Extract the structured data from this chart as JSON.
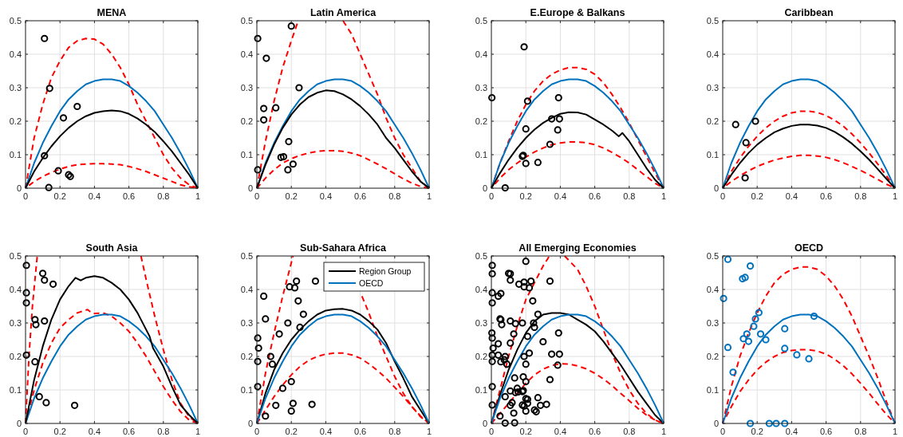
{
  "chart_data": [
    {
      "type": "line",
      "title": "MENA",
      "xlim": [
        0,
        1
      ],
      "xticks": [
        0,
        0.2,
        0.4,
        0.6,
        0.8,
        1
      ],
      "ylim": [
        0,
        0.5
      ],
      "yticks": [
        0,
        0.1,
        0.2,
        0.3,
        0.4,
        0.5
      ],
      "grid": true,
      "legend": false,
      "series": [
        {
          "type": "scatter",
          "marker": "circle",
          "color": "#000000",
          "x": [
            0.11,
            0.14,
            0.3,
            0.22,
            0.11,
            0.19,
            0.25,
            0.26,
            0.135
          ],
          "values": [
            0.447,
            0.298,
            0.244,
            0.21,
            0.097,
            0.052,
            0.04,
            0.035,
            0.002
          ]
        },
        {
          "type": "line",
          "line_style": "dashed",
          "color": "#ff0000",
          "x": [
            0,
            0.05,
            0.1,
            0.15,
            0.2,
            0.25,
            0.3,
            0.35,
            0.4,
            0.45,
            0.5,
            0.55,
            0.6,
            0.65,
            0.7,
            0.75,
            0.8,
            0.85,
            0.9,
            0.95,
            1
          ],
          "values": [
            0,
            0.15,
            0.25,
            0.33,
            0.38,
            0.42,
            0.44,
            0.447,
            0.445,
            0.43,
            0.4,
            0.36,
            0.31,
            0.25,
            0.2,
            0.15,
            0.1,
            0.06,
            0.03,
            0.01,
            0
          ]
        },
        {
          "type": "line",
          "line_style": "dashed",
          "color": "#ff0000",
          "x": [
            0.02,
            0.05,
            0.1,
            0.15,
            0.2,
            0.25,
            0.3,
            0.35,
            0.4,
            0.45,
            0.5,
            0.55,
            0.6,
            0.65,
            0.7,
            0.75,
            0.8,
            0.85,
            0.9,
            0.95,
            0.98
          ],
          "values": [
            0.008,
            0.02,
            0.035,
            0.047,
            0.057,
            0.065,
            0.07,
            0.072,
            0.073,
            0.073,
            0.072,
            0.07,
            0.065,
            0.058,
            0.05,
            0.04,
            0.03,
            0.02,
            0.01,
            0.004,
            0.002
          ]
        },
        {
          "type": "line",
          "line_style": "solid",
          "color": "#0072bd",
          "x": [
            0,
            0.05,
            0.1,
            0.15,
            0.2,
            0.25,
            0.3,
            0.35,
            0.4,
            0.45,
            0.5,
            0.55,
            0.6,
            0.65,
            0.7,
            0.75,
            0.8,
            0.85,
            0.9,
            0.95,
            1
          ],
          "values": [
            0,
            0.075,
            0.135,
            0.185,
            0.23,
            0.265,
            0.29,
            0.31,
            0.32,
            0.325,
            0.325,
            0.32,
            0.305,
            0.285,
            0.26,
            0.23,
            0.19,
            0.15,
            0.105,
            0.055,
            0
          ]
        },
        {
          "type": "line",
          "line_style": "solid",
          "color": "#000000",
          "x": [
            0,
            0.05,
            0.1,
            0.15,
            0.2,
            0.25,
            0.3,
            0.35,
            0.4,
            0.45,
            0.5,
            0.55,
            0.6,
            0.65,
            0.7,
            0.75,
            0.8,
            0.85,
            0.9,
            0.95,
            1
          ],
          "values": [
            0,
            0.05,
            0.09,
            0.125,
            0.155,
            0.18,
            0.2,
            0.215,
            0.225,
            0.23,
            0.232,
            0.23,
            0.222,
            0.208,
            0.19,
            0.168,
            0.14,
            0.11,
            0.075,
            0.04,
            0
          ]
        }
      ]
    },
    {
      "type": "line",
      "title": "Latin America",
      "xlim": [
        0,
        1
      ],
      "xticks": [
        0,
        0.2,
        0.4,
        0.6,
        0.8,
        1
      ],
      "ylim": [
        0,
        0.5
      ],
      "yticks": [
        0,
        0.1,
        0.2,
        0.3,
        0.4,
        0.5
      ],
      "grid": true,
      "legend": false,
      "series": [
        {
          "type": "scatter",
          "marker": "circle",
          "color": "#000000",
          "x": [
            0.005,
            0.055,
            0.2,
            0.245,
            0.11,
            0.04,
            0.04,
            0.185,
            0.14,
            0.155,
            0.005,
            0.21,
            0.18
          ],
          "values": [
            0.447,
            0.388,
            0.484,
            0.3,
            0.24,
            0.238,
            0.204,
            0.139,
            0.092,
            0.094,
            0.055,
            0.072,
            0.055
          ]
        },
        {
          "type": "line",
          "line_style": "dashed",
          "color": "#ff0000",
          "x": [
            0,
            0.05,
            0.1,
            0.15,
            0.2,
            0.24,
            0.35,
            0.5,
            0.55,
            0.6,
            0.65,
            0.7,
            0.75,
            0.8,
            0.85,
            0.9,
            0.95,
            1
          ],
          "values": [
            0,
            0.14,
            0.26,
            0.36,
            0.44,
            0.5,
            null,
            0.5,
            0.46,
            0.4,
            0.34,
            0.28,
            0.21,
            0.15,
            0.1,
            0.06,
            0.02,
            0
          ]
        },
        {
          "type": "line",
          "line_style": "dashed",
          "color": "#ff0000",
          "x": [
            0,
            0.05,
            0.1,
            0.15,
            0.2,
            0.25,
            0.3,
            0.35,
            0.4,
            0.45,
            0.5,
            0.55,
            0.6,
            0.65,
            0.7,
            0.75,
            0.8,
            0.85,
            0.9,
            0.95,
            1
          ],
          "values": [
            0,
            0.03,
            0.055,
            0.075,
            0.088,
            0.098,
            0.105,
            0.11,
            0.112,
            0.112,
            0.11,
            0.105,
            0.097,
            0.085,
            0.072,
            0.058,
            0.043,
            0.028,
            0.015,
            0.005,
            0
          ]
        },
        {
          "type": "line",
          "line_style": "solid",
          "color": "#0072bd",
          "x": [
            0,
            0.05,
            0.1,
            0.15,
            0.2,
            0.25,
            0.3,
            0.35,
            0.4,
            0.45,
            0.5,
            0.55,
            0.6,
            0.65,
            0.7,
            0.75,
            0.8,
            0.85,
            0.9,
            0.95,
            1
          ],
          "values": [
            0,
            0.075,
            0.135,
            0.185,
            0.23,
            0.265,
            0.29,
            0.31,
            0.32,
            0.325,
            0.325,
            0.32,
            0.305,
            0.285,
            0.26,
            0.23,
            0.19,
            0.15,
            0.105,
            0.055,
            0
          ]
        },
        {
          "type": "line",
          "line_style": "solid",
          "color": "#000000",
          "x": [
            0,
            0.05,
            0.1,
            0.15,
            0.2,
            0.25,
            0.3,
            0.35,
            0.4,
            0.45,
            0.5,
            0.55,
            0.6,
            0.65,
            0.7,
            0.75,
            0.8,
            0.85,
            0.9,
            0.95,
            1
          ],
          "values": [
            0,
            0.07,
            0.13,
            0.18,
            0.22,
            0.25,
            0.272,
            0.285,
            0.292,
            0.29,
            0.28,
            0.265,
            0.245,
            0.22,
            0.19,
            0.15,
            0.12,
            0.085,
            0.05,
            0.02,
            0
          ]
        }
      ]
    },
    {
      "type": "line",
      "title": "E.Europe & Balkans",
      "xlim": [
        0,
        1
      ],
      "xticks": [
        0,
        0.2,
        0.4,
        0.6,
        0.8,
        1
      ],
      "ylim": [
        0,
        0.5
      ],
      "yticks": [
        0,
        0.1,
        0.2,
        0.3,
        0.4,
        0.5
      ],
      "grid": true,
      "legend": false,
      "series": [
        {
          "type": "scatter",
          "marker": "circle",
          "color": "#000000",
          "x": [
            0.19,
            0.003,
            0.21,
            0.39,
            0.35,
            0.395,
            0.2,
            0.385,
            0.34,
            0.18,
            0.185,
            0.2,
            0.27,
            0.08
          ],
          "values": [
            0.422,
            0.27,
            0.26,
            0.27,
            0.207,
            0.207,
            0.177,
            0.174,
            0.131,
            0.095,
            0.098,
            0.074,
            0.077,
            0.001
          ]
        },
        {
          "type": "line",
          "line_style": "dashed",
          "color": "#ff0000",
          "x": [
            0,
            0.05,
            0.1,
            0.15,
            0.2,
            0.25,
            0.3,
            0.35,
            0.4,
            0.45,
            0.5,
            0.55,
            0.6,
            0.65,
            0.7,
            0.75,
            0.8,
            0.85,
            0.9,
            0.95,
            1
          ],
          "values": [
            0,
            0.075,
            0.14,
            0.2,
            0.25,
            0.29,
            0.32,
            0.34,
            0.353,
            0.36,
            0.36,
            0.355,
            0.34,
            0.315,
            0.28,
            0.24,
            0.195,
            0.145,
            0.095,
            0.045,
            0
          ]
        },
        {
          "type": "line",
          "line_style": "dashed",
          "color": "#ff0000",
          "x": [
            0.02,
            0.05,
            0.1,
            0.15,
            0.2,
            0.25,
            0.3,
            0.35,
            0.4,
            0.45,
            0.5,
            0.55,
            0.6,
            0.65,
            0.7,
            0.75,
            0.8,
            0.85,
            0.9,
            0.95,
            0.98
          ],
          "values": [
            0.012,
            0.03,
            0.055,
            0.075,
            0.093,
            0.108,
            0.12,
            0.13,
            0.135,
            0.138,
            0.138,
            0.136,
            0.13,
            0.12,
            0.107,
            0.092,
            0.075,
            0.055,
            0.035,
            0.015,
            0.006
          ]
        },
        {
          "type": "line",
          "line_style": "solid",
          "color": "#0072bd",
          "x": [
            0,
            0.05,
            0.1,
            0.15,
            0.2,
            0.25,
            0.3,
            0.35,
            0.4,
            0.45,
            0.5,
            0.55,
            0.6,
            0.65,
            0.7,
            0.75,
            0.8,
            0.85,
            0.9,
            0.95,
            1
          ],
          "values": [
            0,
            0.075,
            0.135,
            0.185,
            0.23,
            0.265,
            0.29,
            0.31,
            0.32,
            0.325,
            0.325,
            0.32,
            0.305,
            0.285,
            0.26,
            0.23,
            0.19,
            0.15,
            0.105,
            0.055,
            0
          ]
        },
        {
          "type": "line",
          "line_style": "solid",
          "color": "#000000",
          "x": [
            0,
            0.05,
            0.1,
            0.15,
            0.2,
            0.25,
            0.3,
            0.35,
            0.4,
            0.45,
            0.5,
            0.55,
            0.6,
            0.65,
            0.7,
            0.74,
            0.76,
            0.8,
            0.85,
            0.9,
            0.95,
            1
          ],
          "values": [
            0,
            0.045,
            0.085,
            0.12,
            0.15,
            0.175,
            0.195,
            0.21,
            0.222,
            0.227,
            0.226,
            0.22,
            0.205,
            0.19,
            0.172,
            0.155,
            0.165,
            0.14,
            0.1,
            0.06,
            0.025,
            0
          ]
        }
      ]
    },
    {
      "type": "line",
      "title": "Caribbean",
      "xlim": [
        0,
        1
      ],
      "xticks": [
        0,
        0.2,
        0.4,
        0.6,
        0.8,
        1
      ],
      "ylim": [
        0,
        0.5
      ],
      "yticks": [
        0,
        0.1,
        0.2,
        0.3,
        0.4,
        0.5
      ],
      "grid": true,
      "legend": false,
      "series": [
        {
          "type": "scatter",
          "marker": "circle",
          "color": "#000000",
          "x": [
            0.075,
            0.19,
            0.135,
            0.13
          ],
          "values": [
            0.19,
            0.2,
            0.136,
            0.031
          ]
        },
        {
          "type": "line",
          "line_style": "dashed",
          "color": "#ff0000",
          "x": [
            0,
            0.05,
            0.1,
            0.15,
            0.2,
            0.25,
            0.3,
            0.35,
            0.4,
            0.45,
            0.5,
            0.55,
            0.6,
            0.65,
            0.7,
            0.75,
            0.8,
            0.85,
            0.9,
            0.95,
            1
          ],
          "values": [
            0,
            0.05,
            0.09,
            0.125,
            0.155,
            0.18,
            0.2,
            0.215,
            0.225,
            0.23,
            0.23,
            0.226,
            0.217,
            0.203,
            0.185,
            0.162,
            0.135,
            0.105,
            0.072,
            0.037,
            0
          ]
        },
        {
          "type": "line",
          "line_style": "dashed",
          "color": "#ff0000",
          "x": [
            0.02,
            0.05,
            0.1,
            0.15,
            0.2,
            0.25,
            0.3,
            0.35,
            0.4,
            0.45,
            0.5,
            0.55,
            0.6,
            0.65,
            0.7,
            0.75,
            0.8,
            0.85,
            0.9,
            0.95,
            0.98
          ],
          "values": [
            0.008,
            0.02,
            0.037,
            0.052,
            0.065,
            0.075,
            0.084,
            0.09,
            0.095,
            0.098,
            0.098,
            0.096,
            0.092,
            0.085,
            0.076,
            0.065,
            0.053,
            0.04,
            0.026,
            0.012,
            0.005
          ]
        },
        {
          "type": "line",
          "line_style": "solid",
          "color": "#0072bd",
          "x": [
            0,
            0.05,
            0.1,
            0.15,
            0.2,
            0.25,
            0.3,
            0.35,
            0.4,
            0.45,
            0.5,
            0.55,
            0.6,
            0.65,
            0.7,
            0.75,
            0.8,
            0.85,
            0.9,
            0.95,
            1
          ],
          "values": [
            0,
            0.075,
            0.135,
            0.185,
            0.23,
            0.265,
            0.29,
            0.31,
            0.32,
            0.325,
            0.325,
            0.32,
            0.305,
            0.285,
            0.26,
            0.23,
            0.19,
            0.15,
            0.105,
            0.055,
            0
          ]
        },
        {
          "type": "line",
          "line_style": "solid",
          "color": "#000000",
          "x": [
            0,
            0.05,
            0.1,
            0.15,
            0.2,
            0.25,
            0.3,
            0.35,
            0.4,
            0.45,
            0.5,
            0.55,
            0.6,
            0.65,
            0.7,
            0.75,
            0.8,
            0.85,
            0.9,
            0.95,
            1
          ],
          "values": [
            0,
            0.04,
            0.075,
            0.105,
            0.13,
            0.15,
            0.167,
            0.178,
            0.186,
            0.19,
            0.19,
            0.187,
            0.18,
            0.168,
            0.152,
            0.133,
            0.11,
            0.085,
            0.057,
            0.028,
            0
          ]
        }
      ]
    },
    {
      "type": "line",
      "title": "South Asia",
      "xlim": [
        0,
        1
      ],
      "xticks": [
        0,
        0.2,
        0.4,
        0.6,
        0.8,
        1
      ],
      "ylim": [
        0,
        0.5
      ],
      "yticks": [
        0,
        0.1,
        0.2,
        0.3,
        0.4,
        0.5
      ],
      "grid": true,
      "legend": false,
      "series": [
        {
          "type": "scatter",
          "marker": "circle",
          "color": "#000000",
          "x": [
            0.005,
            0.005,
            0.005,
            0.005,
            0.1,
            0.11,
            0.16,
            0.055,
            0.06,
            0.11,
            0.055,
            0.08,
            0.12,
            0.285
          ],
          "values": [
            0.472,
            0.39,
            0.36,
            0.204,
            0.448,
            0.428,
            0.416,
            0.31,
            0.295,
            0.306,
            0.184,
            0.08,
            0.062,
            0.054
          ]
        },
        {
          "type": "line",
          "line_style": "dashed",
          "color": "#ff0000",
          "x": [
            0,
            0.02,
            0.04,
            0.068,
            0.3,
            0.67,
            0.7,
            0.75,
            0.8,
            0.85,
            0.9,
            0.95,
            1
          ],
          "values": [
            0,
            0.2,
            0.35,
            0.5,
            null,
            0.5,
            0.43,
            0.32,
            0.22,
            0.13,
            0.06,
            0.02,
            0
          ]
        },
        {
          "type": "line",
          "line_style": "dashed",
          "color": "#ff0000",
          "x": [
            0,
            0.05,
            0.1,
            0.15,
            0.2,
            0.25,
            0.3,
            0.36,
            0.39,
            0.45,
            0.5,
            0.55,
            0.6,
            0.65,
            0.7,
            0.75,
            0.8,
            0.85,
            0.9,
            0.95,
            1
          ],
          "values": [
            0,
            0.1,
            0.18,
            0.24,
            0.285,
            0.31,
            0.33,
            0.34,
            0.328,
            0.33,
            0.32,
            0.3,
            0.275,
            0.24,
            0.2,
            0.155,
            0.11,
            0.07,
            0.035,
            0.01,
            0
          ]
        },
        {
          "type": "line",
          "line_style": "solid",
          "color": "#0072bd",
          "x": [
            0,
            0.05,
            0.1,
            0.15,
            0.2,
            0.25,
            0.3,
            0.35,
            0.4,
            0.45,
            0.5,
            0.55,
            0.6,
            0.65,
            0.7,
            0.75,
            0.8,
            0.85,
            0.9,
            0.95,
            1
          ],
          "values": [
            0,
            0.075,
            0.135,
            0.185,
            0.23,
            0.265,
            0.29,
            0.31,
            0.32,
            0.325,
            0.325,
            0.32,
            0.305,
            0.285,
            0.26,
            0.23,
            0.19,
            0.15,
            0.105,
            0.055,
            0
          ]
        },
        {
          "type": "line",
          "line_style": "solid",
          "color": "#000000",
          "x": [
            0,
            0.05,
            0.1,
            0.15,
            0.2,
            0.25,
            0.29,
            0.32,
            0.35,
            0.4,
            0.45,
            0.5,
            0.55,
            0.6,
            0.65,
            0.7,
            0.72,
            0.74,
            0.8,
            0.85,
            0.9,
            0.95,
            1
          ],
          "values": [
            0,
            0.13,
            0.23,
            0.31,
            0.37,
            0.41,
            0.435,
            0.427,
            0.435,
            0.44,
            0.435,
            0.42,
            0.4,
            0.37,
            0.33,
            0.28,
            0.26,
            0.225,
            0.17,
            0.11,
            0.055,
            0.025,
            0
          ]
        }
      ]
    },
    {
      "type": "line",
      "title": "Sub-Sahara Africa",
      "xlim": [
        0,
        1
      ],
      "xticks": [
        0,
        0.2,
        0.4,
        0.6,
        0.8,
        1
      ],
      "ylim": [
        0,
        0.5
      ],
      "yticks": [
        0,
        0.1,
        0.2,
        0.3,
        0.4,
        0.5
      ],
      "grid": true,
      "legend": "top right",
      "series": [
        {
          "type": "scatter",
          "marker": "circle",
          "color": "#000000",
          "x": [
            0.23,
            0.34,
            0.19,
            0.22,
            0.04,
            0.24,
            0.27,
            0.05,
            0.18,
            0.25,
            0.13,
            0.005,
            0.01,
            0.08,
            0.005,
            0.09,
            0.005,
            0.2,
            0.15,
            0.11,
            0.21,
            0.32,
            0.2,
            0.05
          ],
          "values": [
            0.425,
            0.425,
            0.408,
            0.405,
            0.38,
            0.366,
            0.326,
            0.312,
            0.3,
            0.287,
            0.267,
            0.255,
            0.225,
            0.2,
            0.185,
            0.177,
            0.11,
            0.125,
            0.105,
            0.054,
            0.06,
            0.057,
            0.037,
            0.022
          ]
        },
        {
          "type": "line",
          "line_style": "dashed",
          "color": "#ff0000",
          "x": [
            0,
            0.05,
            0.1,
            0.15,
            0.21,
            0.35,
            0.61,
            0.65,
            0.7,
            0.75,
            0.8,
            0.85,
            0.9,
            0.95,
            1
          ],
          "values": [
            0,
            0.15,
            0.27,
            0.38,
            0.5,
            null,
            0.38,
            0.33,
            0.26,
            0.2,
            0.14,
            0.09,
            0.05,
            0.02,
            0
          ]
        },
        {
          "type": "line",
          "line_style": "dashed",
          "color": "#ff0000",
          "x": [
            0,
            0.05,
            0.1,
            0.15,
            0.2,
            0.25,
            0.3,
            0.35,
            0.4,
            0.45,
            0.5,
            0.55,
            0.6,
            0.65,
            0.7,
            0.75,
            0.8,
            0.85,
            0.9,
            0.95,
            1
          ],
          "values": [
            0,
            0.04,
            0.08,
            0.115,
            0.145,
            0.17,
            0.188,
            0.2,
            0.207,
            0.21,
            0.21,
            0.205,
            0.195,
            0.178,
            0.158,
            0.135,
            0.108,
            0.08,
            0.05,
            0.022,
            0
          ]
        },
        {
          "type": "line",
          "name": "Region Group",
          "line_style": "solid",
          "color": "#000000",
          "x": [
            0,
            0.05,
            0.1,
            0.15,
            0.2,
            0.25,
            0.3,
            0.35,
            0.4,
            0.45,
            0.5,
            0.55,
            0.6,
            0.65,
            0.7,
            0.75,
            0.8,
            0.85,
            0.9,
            0.95,
            1
          ],
          "values": [
            0,
            0.09,
            0.16,
            0.21,
            0.25,
            0.28,
            0.305,
            0.325,
            0.337,
            0.341,
            0.342,
            0.337,
            0.325,
            0.305,
            0.28,
            0.24,
            0.185,
            0.135,
            0.08,
            0.04,
            0
          ]
        },
        {
          "type": "line",
          "name": "OECD",
          "line_style": "solid",
          "color": "#0072bd",
          "x": [
            0,
            0.05,
            0.1,
            0.15,
            0.2,
            0.25,
            0.3,
            0.35,
            0.4,
            0.45,
            0.5,
            0.55,
            0.6,
            0.65,
            0.7,
            0.75,
            0.8,
            0.85,
            0.9,
            0.95,
            1
          ],
          "values": [
            0,
            0.075,
            0.135,
            0.185,
            0.23,
            0.265,
            0.29,
            0.31,
            0.32,
            0.325,
            0.325,
            0.32,
            0.305,
            0.285,
            0.26,
            0.23,
            0.19,
            0.15,
            0.105,
            0.055,
            0
          ]
        }
      ]
    },
    {
      "type": "line",
      "title": "All Emerging Economies",
      "xlim": [
        0,
        1
      ],
      "xticks": [
        0,
        0.2,
        0.4,
        0.6,
        0.8,
        1
      ],
      "ylim": [
        0,
        0.5
      ],
      "yticks": [
        0,
        0.1,
        0.2,
        0.3,
        0.4,
        0.5
      ],
      "grid": true,
      "legend": false,
      "series": [
        {
          "type": "scatter",
          "marker": "circle",
          "color": "#000000",
          "x": [
            0.11,
            0.14,
            0.3,
            0.22,
            0.11,
            0.19,
            0.25,
            0.26,
            0.135,
            0.005,
            0.055,
            0.2,
            0.245,
            0.11,
            0.04,
            0.04,
            0.185,
            0.14,
            0.155,
            0.005,
            0.21,
            0.18,
            0.19,
            0.003,
            0.21,
            0.39,
            0.35,
            0.395,
            0.2,
            0.385,
            0.34,
            0.18,
            0.185,
            0.2,
            0.27,
            0.08,
            0.075,
            0.19,
            0.135,
            0.13,
            0.005,
            0.005,
            0.005,
            0.005,
            0.1,
            0.11,
            0.16,
            0.055,
            0.06,
            0.11,
            0.055,
            0.08,
            0.12,
            0.285,
            0.23,
            0.34,
            0.19,
            0.22,
            0.04,
            0.24,
            0.27,
            0.05,
            0.18,
            0.25,
            0.13,
            0.005,
            0.01,
            0.08,
            0.005,
            0.09,
            0.005,
            0.2,
            0.15,
            0.11,
            0.21,
            0.32,
            0.2,
            0.05
          ],
          "values": [
            0.447,
            0.298,
            0.244,
            0.21,
            0.097,
            0.052,
            0.04,
            0.035,
            0.002,
            0.447,
            0.388,
            0.484,
            0.3,
            0.24,
            0.238,
            0.204,
            0.139,
            0.092,
            0.094,
            0.055,
            0.072,
            0.055,
            0.422,
            0.27,
            0.26,
            0.27,
            0.207,
            0.207,
            0.177,
            0.174,
            0.131,
            0.095,
            0.098,
            0.074,
            0.077,
            0.001,
            0.19,
            0.2,
            0.136,
            0.031,
            0.472,
            0.39,
            0.36,
            0.204,
            0.448,
            0.428,
            0.416,
            0.31,
            0.295,
            0.306,
            0.184,
            0.08,
            0.062,
            0.054,
            0.425,
            0.425,
            0.408,
            0.405,
            0.38,
            0.366,
            0.326,
            0.312,
            0.3,
            0.287,
            0.267,
            0.255,
            0.225,
            0.2,
            0.185,
            0.177,
            0.11,
            0.125,
            0.105,
            0.054,
            0.06,
            0.057,
            0.037,
            0.022
          ]
        },
        {
          "type": "line",
          "line_style": "dashed",
          "color": "#ff0000",
          "x": [
            0,
            0.05,
            0.1,
            0.15,
            0.2,
            0.25,
            0.3,
            0.337,
            0.38,
            0.425,
            0.5,
            0.55,
            0.6,
            0.65,
            0.7,
            0.75,
            0.8,
            0.85,
            0.9,
            0.95,
            1
          ],
          "values": [
            0,
            0.1,
            0.2,
            0.29,
            0.37,
            0.42,
            0.47,
            0.5,
            null,
            0.5,
            0.46,
            0.41,
            0.35,
            0.28,
            0.21,
            0.15,
            0.1,
            0.06,
            0.03,
            0.01,
            0
          ]
        },
        {
          "type": "line",
          "line_style": "dashed",
          "color": "#ff0000",
          "x": [
            0,
            0.05,
            0.1,
            0.15,
            0.2,
            0.25,
            0.3,
            0.35,
            0.4,
            0.45,
            0.5,
            0.55,
            0.6,
            0.65,
            0.7,
            0.75,
            0.8,
            0.85,
            0.9,
            0.95,
            1
          ],
          "values": [
            0,
            0.03,
            0.06,
            0.09,
            0.12,
            0.145,
            0.162,
            0.173,
            0.178,
            0.177,
            0.172,
            0.163,
            0.15,
            0.133,
            0.113,
            0.09,
            0.068,
            0.045,
            0.025,
            0.01,
            0
          ]
        },
        {
          "type": "line",
          "line_style": "solid",
          "color": "#000000",
          "x": [
            0,
            0.05,
            0.1,
            0.15,
            0.2,
            0.25,
            0.3,
            0.35,
            0.4,
            0.45,
            0.5,
            0.55,
            0.6,
            0.65,
            0.7,
            0.75,
            0.8,
            0.85,
            0.9,
            0.95,
            1
          ],
          "values": [
            0,
            0.085,
            0.16,
            0.22,
            0.27,
            0.305,
            0.325,
            0.33,
            0.33,
            0.325,
            0.31,
            0.295,
            0.275,
            0.245,
            0.21,
            0.175,
            0.135,
            0.095,
            0.06,
            0.025,
            0
          ]
        },
        {
          "type": "line",
          "line_style": "solid",
          "color": "#0072bd",
          "x": [
            0,
            0.05,
            0.1,
            0.15,
            0.2,
            0.25,
            0.3,
            0.35,
            0.4,
            0.45,
            0.5,
            0.55,
            0.6,
            0.65,
            0.7,
            0.75,
            0.8,
            0.85,
            0.9,
            0.95,
            1
          ],
          "values": [
            0,
            0.075,
            0.135,
            0.185,
            0.23,
            0.265,
            0.29,
            0.31,
            0.32,
            0.325,
            0.325,
            0.32,
            0.305,
            0.285,
            0.26,
            0.23,
            0.19,
            0.15,
            0.105,
            0.055,
            0
          ]
        }
      ]
    },
    {
      "type": "line",
      "title": "OECD",
      "xlim": [
        0,
        1
      ],
      "xticks": [
        0,
        0.2,
        0.4,
        0.6,
        0.8,
        1
      ],
      "ylim": [
        0,
        0.5
      ],
      "yticks": [
        0,
        0.1,
        0.2,
        0.3,
        0.4,
        0.5
      ],
      "grid": true,
      "legend": false,
      "series": [
        {
          "type": "scatter",
          "marker": "circle",
          "color": "#0072bd",
          "x": [
            0.03,
            0.16,
            0.13,
            0.115,
            0.005,
            0.21,
            0.19,
            0.53,
            0.18,
            0.36,
            0.14,
            0.22,
            0.12,
            0.25,
            0.15,
            0.03,
            0.36,
            0.43,
            0.5,
            0.06,
            0.16,
            0.27,
            0.31,
            0.36
          ],
          "values": [
            0.49,
            0.47,
            0.436,
            0.432,
            0.373,
            0.331,
            0.312,
            0.32,
            0.29,
            0.283,
            0.267,
            0.267,
            0.253,
            0.25,
            0.245,
            0.227,
            0.224,
            0.205,
            0.193,
            0.153,
            0,
            0,
            0,
            0
          ]
        },
        {
          "type": "line",
          "line_style": "dashed",
          "color": "#ff0000",
          "x": [
            0,
            0.05,
            0.1,
            0.15,
            0.2,
            0.25,
            0.3,
            0.35,
            0.4,
            0.45,
            0.5,
            0.55,
            0.6,
            0.65,
            0.7,
            0.75,
            0.8,
            0.85,
            0.9,
            0.95,
            1
          ],
          "values": [
            0,
            0.11,
            0.2,
            0.27,
            0.33,
            0.38,
            0.42,
            0.445,
            0.46,
            0.467,
            0.467,
            0.46,
            0.44,
            0.41,
            0.37,
            0.32,
            0.26,
            0.2,
            0.135,
            0.065,
            0
          ]
        },
        {
          "type": "line",
          "line_style": "dashed",
          "color": "#ff0000",
          "x": [
            0.02,
            0.05,
            0.1,
            0.15,
            0.2,
            0.25,
            0.3,
            0.35,
            0.4,
            0.45,
            0.5,
            0.55,
            0.6,
            0.65,
            0.7,
            0.75,
            0.8,
            0.85,
            0.9,
            0.95,
            0.98
          ],
          "values": [
            0.02,
            0.05,
            0.095,
            0.13,
            0.16,
            0.183,
            0.2,
            0.212,
            0.218,
            0.22,
            0.22,
            0.216,
            0.207,
            0.192,
            0.172,
            0.148,
            0.12,
            0.09,
            0.058,
            0.027,
            0.011
          ]
        },
        {
          "type": "line",
          "line_style": "solid",
          "color": "#0072bd",
          "x": [
            0,
            0.05,
            0.1,
            0.15,
            0.2,
            0.25,
            0.3,
            0.35,
            0.4,
            0.45,
            0.5,
            0.55,
            0.6,
            0.65,
            0.7,
            0.75,
            0.8,
            0.85,
            0.9,
            0.95,
            1
          ],
          "values": [
            0,
            0.075,
            0.135,
            0.185,
            0.23,
            0.265,
            0.29,
            0.31,
            0.32,
            0.325,
            0.325,
            0.32,
            0.305,
            0.285,
            0.26,
            0.23,
            0.19,
            0.15,
            0.105,
            0.055,
            0
          ]
        }
      ]
    }
  ]
}
